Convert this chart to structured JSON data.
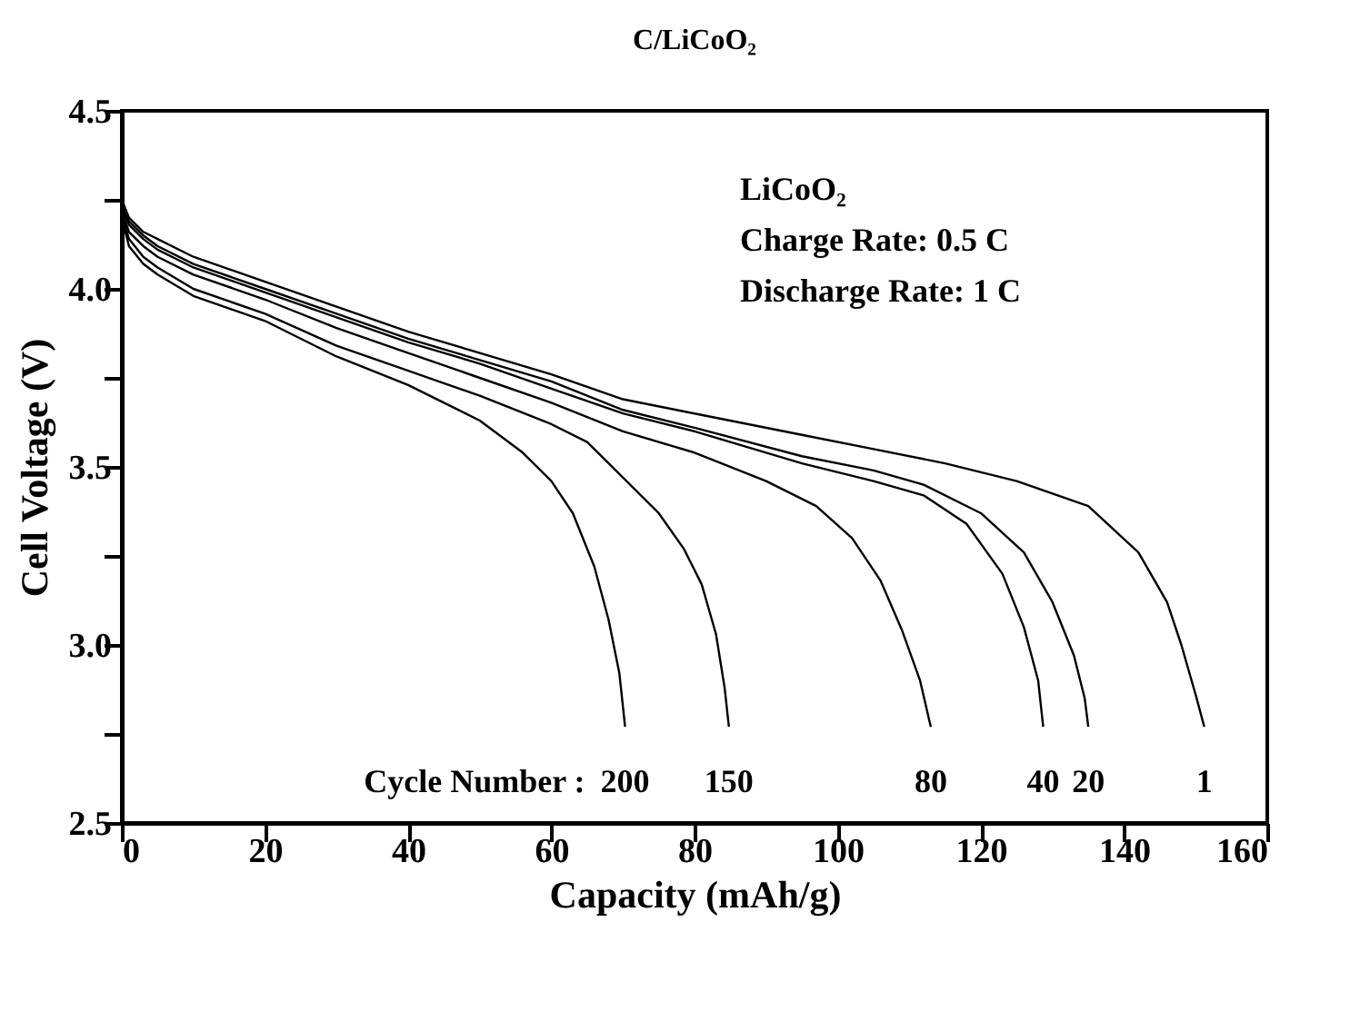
{
  "chart_data": {
    "type": "line",
    "title": "C/LiCoO₂",
    "xlabel": "Capacity (mAh/g)",
    "ylabel": "Cell Voltage (V)",
    "annotations": [
      "LiCoO₂",
      "Charge Rate: 0.5 C",
      "Discharge Rate: 1 C",
      "Cycle Number :"
    ],
    "xlim": [
      0,
      160
    ],
    "ylim": [
      2.5,
      4.5
    ],
    "xticks": [
      0,
      20,
      40,
      60,
      80,
      100,
      120,
      140,
      160
    ],
    "yticks": [
      {
        "value": 2.5,
        "label": "2.5"
      },
      {
        "value": 2.75,
        "label": null
      },
      {
        "value": 3.0,
        "label": "3.0"
      },
      {
        "value": 3.25,
        "label": null
      },
      {
        "value": 3.5,
        "label": "3.5"
      },
      {
        "value": 3.75,
        "label": null
      },
      {
        "value": 4.0,
        "label": "4.0"
      },
      {
        "value": 4.25,
        "label": null
      },
      {
        "value": 4.5,
        "label": "4.5"
      }
    ],
    "grid": false,
    "marker": "none",
    "line_style": "solid",
    "series": [
      {
        "name": "1",
        "color": "#000000",
        "x": [
          0,
          1,
          3,
          5,
          10,
          20,
          30,
          40,
          50,
          60,
          70,
          80,
          95,
          105,
          115,
          125,
          135,
          142,
          146,
          148,
          150,
          151.2
        ],
        "values": [
          4.25,
          4.2,
          4.16,
          4.14,
          4.09,
          4.02,
          3.95,
          3.88,
          3.82,
          3.76,
          3.69,
          3.65,
          3.59,
          3.55,
          3.51,
          3.46,
          3.39,
          3.26,
          3.12,
          3.0,
          2.86,
          2.77
        ]
      },
      {
        "name": "20",
        "color": "#000000",
        "x": [
          0,
          1,
          3,
          5,
          10,
          20,
          30,
          40,
          50,
          60,
          70,
          80,
          95,
          105,
          112,
          120,
          126,
          130,
          133,
          134.5,
          135
        ],
        "values": [
          4.24,
          4.19,
          4.15,
          4.12,
          4.07,
          4.0,
          3.93,
          3.86,
          3.8,
          3.74,
          3.66,
          3.61,
          3.53,
          3.49,
          3.45,
          3.37,
          3.26,
          3.12,
          2.97,
          2.85,
          2.77
        ]
      },
      {
        "name": "40",
        "color": "#000000",
        "x": [
          0,
          1,
          3,
          5,
          10,
          20,
          30,
          40,
          50,
          60,
          70,
          80,
          95,
          105,
          112,
          118,
          123,
          126,
          128,
          128.7
        ],
        "values": [
          4.23,
          4.18,
          4.14,
          4.11,
          4.06,
          3.99,
          3.92,
          3.85,
          3.79,
          3.72,
          3.65,
          3.6,
          3.51,
          3.46,
          3.42,
          3.34,
          3.2,
          3.05,
          2.9,
          2.77
        ]
      },
      {
        "name": "80",
        "color": "#000000",
        "x": [
          0,
          1,
          3,
          5,
          10,
          20,
          30,
          40,
          50,
          60,
          70,
          80,
          90,
          97,
          102,
          106,
          109,
          111.5,
          113
        ],
        "values": [
          4.22,
          4.16,
          4.12,
          4.09,
          4.04,
          3.97,
          3.89,
          3.82,
          3.75,
          3.68,
          3.6,
          3.54,
          3.46,
          3.39,
          3.3,
          3.18,
          3.04,
          2.9,
          2.77
        ]
      },
      {
        "name": "150",
        "color": "#000000",
        "x": [
          0,
          1,
          3,
          5,
          10,
          20,
          30,
          40,
          50,
          60,
          65,
          70,
          75,
          78.5,
          81,
          83,
          84.2,
          84.8
        ],
        "values": [
          4.21,
          4.14,
          4.09,
          4.06,
          4.0,
          3.93,
          3.84,
          3.77,
          3.7,
          3.62,
          3.57,
          3.47,
          3.37,
          3.27,
          3.17,
          3.03,
          2.88,
          2.77
        ]
      },
      {
        "name": "200",
        "color": "#000000",
        "x": [
          0,
          1,
          3,
          5,
          10,
          20,
          30,
          40,
          50,
          56,
          60,
          63,
          66,
          68,
          69.5,
          70.3
        ],
        "values": [
          4.2,
          4.12,
          4.07,
          4.04,
          3.98,
          3.91,
          3.81,
          3.73,
          3.63,
          3.54,
          3.46,
          3.37,
          3.22,
          3.07,
          2.92,
          2.77
        ]
      }
    ]
  }
}
